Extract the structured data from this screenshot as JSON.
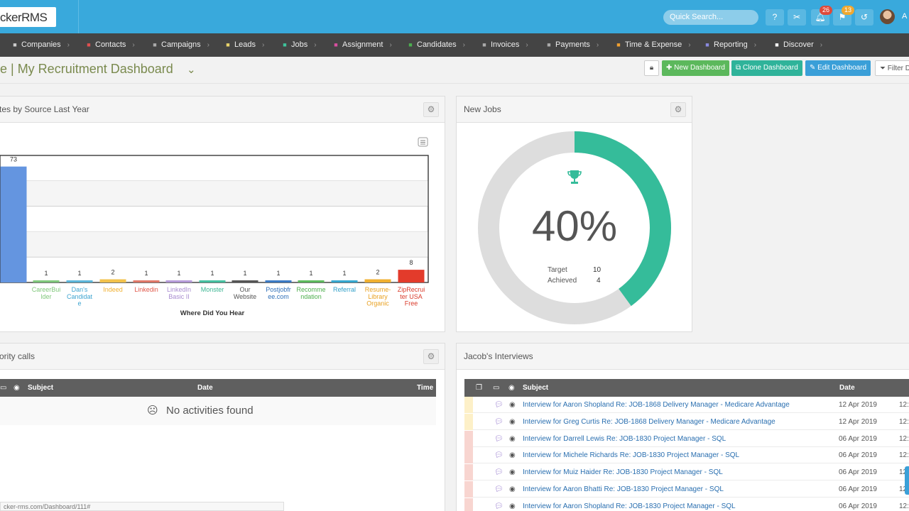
{
  "header": {
    "logo": "ckerRMS",
    "search_placeholder": "Quick Search...",
    "notifications_count": "26",
    "flags_count": "13",
    "user_initial": "A"
  },
  "nav": [
    {
      "label": "Companies",
      "icon": "building-icon",
      "icon_color": "#cccccc"
    },
    {
      "label": "Contacts",
      "icon": "contact-card-icon",
      "icon_color": "#e05050"
    },
    {
      "label": "Campaigns",
      "icon": "megaphone-icon",
      "icon_color": "#aaaaaa"
    },
    {
      "label": "Leads",
      "icon": "star-icon",
      "icon_color": "#e8d36a"
    },
    {
      "label": "Jobs",
      "icon": "trophy-icon",
      "icon_color": "#3ec39b"
    },
    {
      "label": "Assignment",
      "icon": "list-icon",
      "icon_color": "#d94fa0"
    },
    {
      "label": "Candidates",
      "icon": "users-icon",
      "icon_color": "#4caf50"
    },
    {
      "label": "Invoices",
      "icon": "invoice-icon",
      "icon_color": "#aaaaaa"
    },
    {
      "label": "Payments",
      "icon": "payment-icon",
      "icon_color": "#aaaaaa"
    },
    {
      "label": "Time & Expense",
      "icon": "clock-icon",
      "icon_color": "#f0a030"
    },
    {
      "label": "Reporting",
      "icon": "bar-chart-icon",
      "icon_color": "#8a8ae0"
    },
    {
      "label": "Discover",
      "icon": "search-icon",
      "icon_color": "#ffffff"
    }
  ],
  "title": {
    "text": "e | My Recruitment Dashboard"
  },
  "actions": {
    "new_dashboard": "New Dashboard",
    "clone_dashboard": "Clone Dashboard",
    "edit_dashboard": "Edit Dashboard",
    "filter": "Filter D"
  },
  "panels": {
    "candidates": {
      "title": "tes by Source Last Year"
    },
    "new_jobs": {
      "title": "New Jobs"
    },
    "priority_calls": {
      "title": "ority calls"
    },
    "interviews": {
      "title": "Jacob's Interviews"
    }
  },
  "chart_data": {
    "type": "bar",
    "xlabel": "Where Did You Hear",
    "categories": [
      "",
      "CareerBuilder",
      "Dan's Candidate",
      "Indeed",
      "Linkedin",
      "LinkedIn Basic II",
      "Monster",
      "Our Website",
      "Postjobfree.com",
      "Recommendation",
      "Referral",
      "Resume-Library Organic",
      "ZipRecruiter USA Free"
    ],
    "category_lines": [
      [
        ""
      ],
      [
        "CareerBui",
        "lder"
      ],
      [
        "Dan's",
        "Candidat",
        "e"
      ],
      [
        "Indeed"
      ],
      [
        "Linkedin"
      ],
      [
        "LinkedIn",
        "Basic II"
      ],
      [
        "Monster"
      ],
      [
        "Our",
        "Website"
      ],
      [
        "Postjobfr",
        "ee.com"
      ],
      [
        "Recomme",
        "ndation"
      ],
      [
        "Referral"
      ],
      [
        "Resume-",
        "Library",
        "Organic"
      ],
      [
        "ZipRecrui",
        "ter USA",
        "Free"
      ]
    ],
    "values": [
      73,
      1,
      1,
      2,
      1,
      1,
      1,
      1,
      1,
      1,
      1,
      2,
      8
    ],
    "colors": [
      "#6495e0",
      "#7fc77a",
      "#5bb5d9",
      "#f2c24b",
      "#e07868",
      "#b59ad8",
      "#45c0a0",
      "#555555",
      "#3b7ac4",
      "#5cba5c",
      "#35a7cf",
      "#f0b030",
      "#e33b2b"
    ],
    "label_colors": [
      "#6495e0",
      "#7fc77a",
      "#3da4d0",
      "#f0b030",
      "#e0584a",
      "#a88cd0",
      "#3bb592",
      "#555555",
      "#2f6fb8",
      "#4cae4c",
      "#2f9fc8",
      "#e8a020",
      "#d93a2a"
    ],
    "ylim": [
      0,
      80
    ],
    "grid": true
  },
  "new_jobs": {
    "percent_text": "40%",
    "percent": 40,
    "target_label": "Target",
    "target_value": "10",
    "achieved_label": "Achieved",
    "achieved_value": "4",
    "accent": "#35bc9a"
  },
  "priority_calls": {
    "columns": {
      "subject": "Subject",
      "date": "Date",
      "time": "Time"
    },
    "empty_text": "No activities found"
  },
  "interviews": {
    "columns": {
      "subject": "Subject",
      "date": "Date"
    },
    "rows": [
      {
        "subject": "Interview for Aaron Shopland Re: JOB-1868 Delivery Manager - Medicare Advantage",
        "date": "12 Apr 2019",
        "time": "12:",
        "stripe": "#fdf0c8"
      },
      {
        "subject": "Interview for Greg Curtis Re: JOB-1868 Delivery Manager - Medicare Advantage",
        "date": "12 Apr 2019",
        "time": "12:",
        "stripe": "#fdf0c8"
      },
      {
        "subject": "Interview for Darrell Lewis Re: JOB-1830 Project Manager - SQL",
        "date": "06 Apr 2019",
        "time": "12:",
        "stripe": "#f8d5d0"
      },
      {
        "subject": "Interview for Michele Richards Re: JOB-1830 Project Manager - SQL",
        "date": "06 Apr 2019",
        "time": "12:",
        "stripe": "#f8d5d0"
      },
      {
        "subject": "Interview for Muiz Haider Re: JOB-1830 Project Manager - SQL",
        "date": "06 Apr 2019",
        "time": "12:",
        "stripe": "#f8d5d0"
      },
      {
        "subject": "Interview for Aaron Bhatti Re: JOB-1830 Project Manager - SQL",
        "date": "06 Apr 2019",
        "time": "12:",
        "stripe": "#f8d5d0"
      },
      {
        "subject": "Interview for Aaron Shopland Re: JOB-1830 Project Manager - SQL",
        "date": "06 Apr 2019",
        "time": "12:",
        "stripe": "#f8d5d0"
      }
    ]
  },
  "statusbar": {
    "url": "cker-rms.com/Dashboard/111#"
  }
}
